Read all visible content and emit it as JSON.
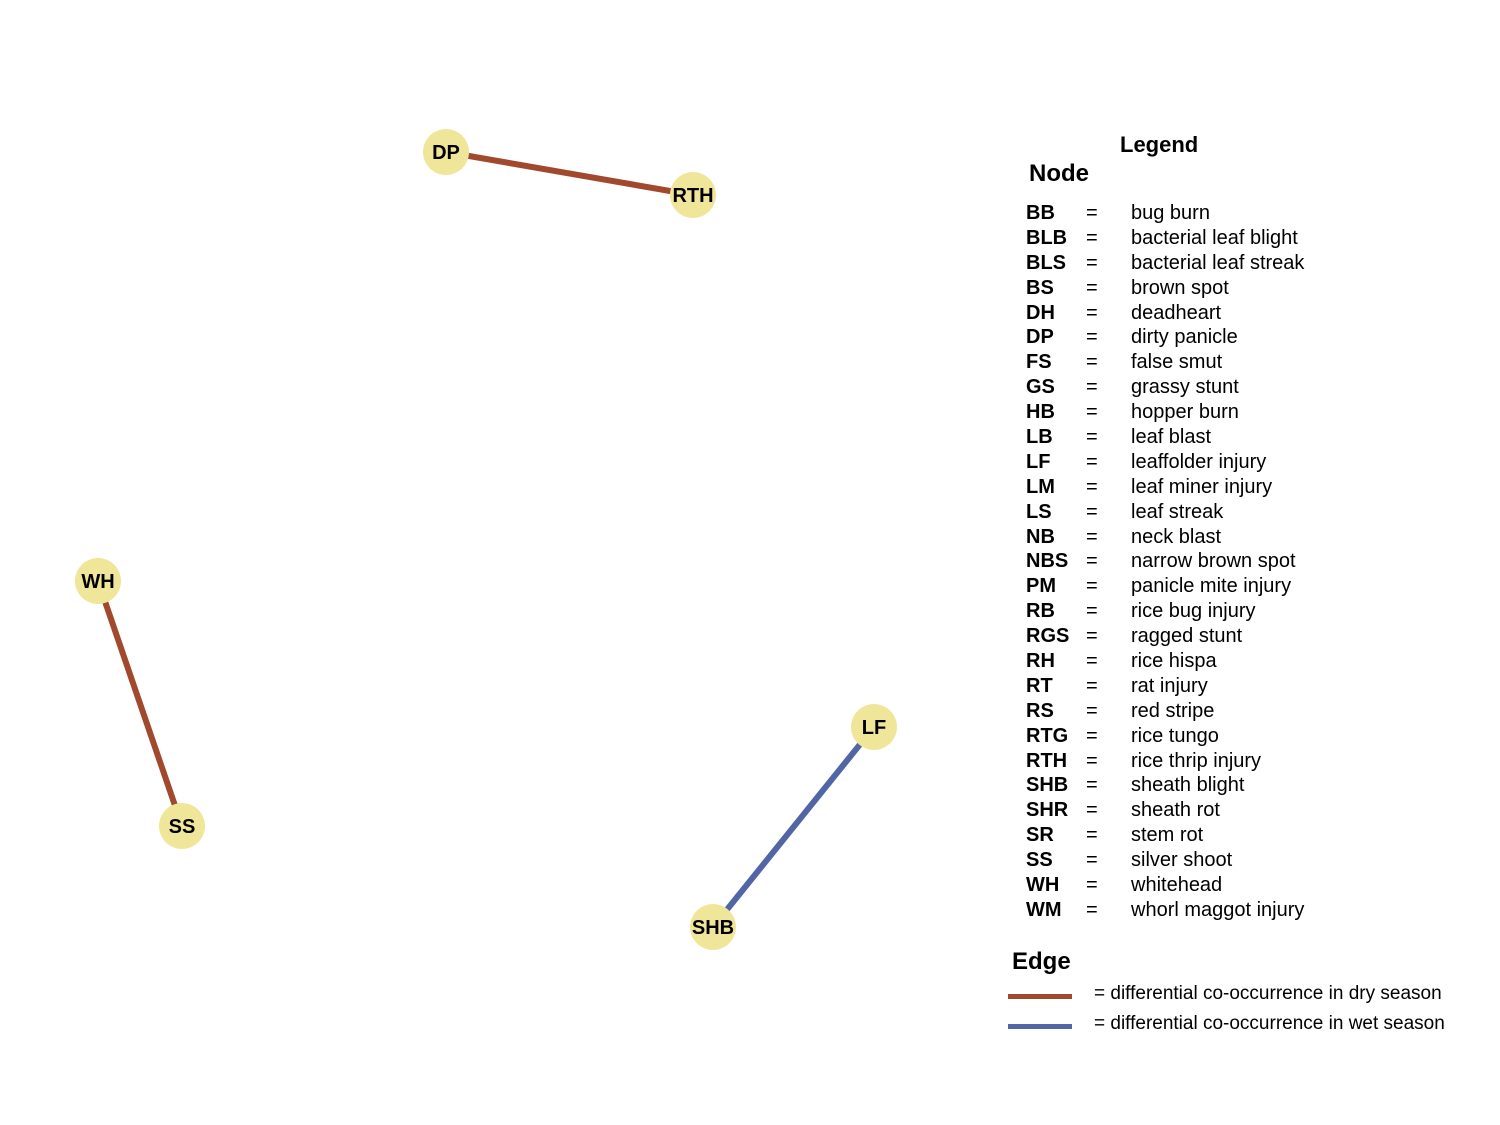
{
  "network": {
    "node_color": "#f0e69a",
    "nodes": [
      {
        "id": "DP",
        "label": "DP"
      },
      {
        "id": "RTH",
        "label": "RTH"
      },
      {
        "id": "WH",
        "label": "WH"
      },
      {
        "id": "SS",
        "label": "SS"
      },
      {
        "id": "LF",
        "label": "LF"
      },
      {
        "id": "SHB",
        "label": "SHB"
      }
    ],
    "edges": [
      {
        "source": "DP",
        "target": "RTH",
        "season": "dry"
      },
      {
        "source": "WH",
        "target": "SS",
        "season": "dry"
      },
      {
        "source": "LF",
        "target": "SHB",
        "season": "wet"
      }
    ]
  },
  "legend": {
    "title": "Legend",
    "node_heading": "Node",
    "equals": "=",
    "nodes": [
      {
        "abbr": "BB",
        "name": "bug burn"
      },
      {
        "abbr": "BLB",
        "name": "bacterial leaf blight"
      },
      {
        "abbr": "BLS",
        "name": "bacterial leaf streak"
      },
      {
        "abbr": "BS",
        "name": "brown spot"
      },
      {
        "abbr": "DH",
        "name": "deadheart"
      },
      {
        "abbr": "DP",
        "name": "dirty panicle"
      },
      {
        "abbr": "FS",
        "name": "false smut"
      },
      {
        "abbr": "GS",
        "name": "grassy stunt"
      },
      {
        "abbr": "HB",
        "name": "hopper burn"
      },
      {
        "abbr": "LB",
        "name": "leaf blast"
      },
      {
        "abbr": "LF",
        "name": "leaffolder injury"
      },
      {
        "abbr": "LM",
        "name": "leaf miner injury"
      },
      {
        "abbr": "LS",
        "name": "leaf streak"
      },
      {
        "abbr": "NB",
        "name": "neck blast"
      },
      {
        "abbr": "NBS",
        "name": "narrow brown spot"
      },
      {
        "abbr": "PM",
        "name": "panicle mite injury"
      },
      {
        "abbr": "RB",
        "name": "rice bug injury"
      },
      {
        "abbr": "RGS",
        "name": "ragged stunt"
      },
      {
        "abbr": "RH",
        "name": "rice hispa"
      },
      {
        "abbr": "RT",
        "name": "rat injury"
      },
      {
        "abbr": "RS",
        "name": "red stripe"
      },
      {
        "abbr": "RTG",
        "name": "rice tungo"
      },
      {
        "abbr": "RTH",
        "name": "rice thrip injury"
      },
      {
        "abbr": "SHB",
        "name": "sheath blight"
      },
      {
        "abbr": "SHR",
        "name": "sheath rot"
      },
      {
        "abbr": "SR",
        "name": "stem rot"
      },
      {
        "abbr": "SS",
        "name": "silver shoot"
      },
      {
        "abbr": "WH",
        "name": "whitehead"
      },
      {
        "abbr": "WM",
        "name": "whorl maggot injury"
      }
    ],
    "edge_heading": "Edge",
    "edges": [
      {
        "season": "dry",
        "color": "#a0492c",
        "label": "= differential co-occurrence in dry season"
      },
      {
        "season": "wet",
        "color": "#5266a6",
        "label": "= differential co-occurrence in wet season"
      }
    ]
  }
}
